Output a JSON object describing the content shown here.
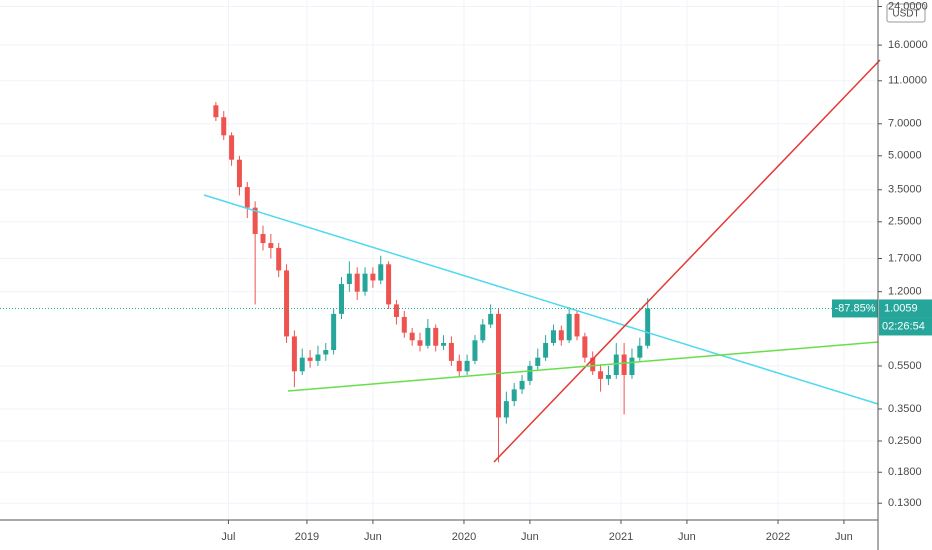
{
  "chart_data": {
    "type": "candlestick",
    "currency": "USDT",
    "log_scale": true,
    "grid": true,
    "up_color": "#26a69a",
    "down_color": "#ef5350",
    "x": [
      2018.42,
      2018.47,
      2018.52,
      2018.57,
      2018.62,
      2018.67,
      2018.72,
      2018.77,
      2018.82,
      2018.87,
      2018.92,
      2018.97,
      2019.02,
      2019.07,
      2019.12,
      2019.17,
      2019.22,
      2019.27,
      2019.32,
      2019.37,
      2019.42,
      2019.47,
      2019.52,
      2019.57,
      2019.62,
      2019.67,
      2019.72,
      2019.77,
      2019.82,
      2019.87,
      2019.92,
      2019.97,
      2020.02,
      2020.07,
      2020.12,
      2020.17,
      2020.22,
      2020.27,
      2020.32,
      2020.37,
      2020.42,
      2020.47,
      2020.52,
      2020.57,
      2020.62,
      2020.67,
      2020.72,
      2020.77,
      2020.82,
      2020.87,
      2020.92,
      2020.97,
      2021.02,
      2021.07,
      2021.12,
      2021.17
    ],
    "open": [
      8.5,
      7.5,
      6.2,
      4.8,
      3.6,
      2.9,
      2.2,
      2.0,
      1.9,
      1.5,
      0.75,
      0.52,
      0.6,
      0.58,
      0.62,
      0.65,
      0.95,
      1.3,
      1.45,
      1.2,
      1.45,
      1.35,
      1.6,
      1.05,
      0.92,
      0.78,
      0.72,
      0.68,
      0.82,
      0.68,
      0.7,
      0.58,
      0.52,
      0.58,
      0.72,
      0.85,
      0.95,
      0.32,
      0.38,
      0.43,
      0.47,
      0.55,
      0.6,
      0.7,
      0.8,
      0.72,
      0.95,
      0.75,
      0.6,
      0.52,
      0.48,
      0.5,
      0.62,
      0.5,
      0.6,
      0.68
    ],
    "high": [
      8.8,
      8.0,
      6.4,
      5.0,
      3.8,
      3.1,
      2.4,
      2.2,
      2.0,
      1.6,
      0.8,
      0.66,
      0.65,
      0.68,
      0.7,
      1.0,
      1.4,
      1.65,
      1.55,
      1.55,
      1.55,
      1.75,
      1.65,
      1.1,
      0.98,
      0.82,
      0.78,
      0.9,
      0.85,
      0.76,
      0.75,
      0.62,
      0.62,
      0.76,
      0.9,
      1.05,
      1.0,
      0.42,
      0.46,
      0.5,
      0.58,
      0.66,
      0.76,
      0.85,
      0.84,
      1.02,
      0.98,
      0.78,
      0.64,
      0.56,
      0.55,
      0.7,
      0.7,
      0.66,
      0.74,
      1.12
    ],
    "low": [
      7.2,
      5.9,
      4.5,
      3.3,
      2.6,
      1.05,
      1.85,
      1.7,
      1.4,
      0.7,
      0.44,
      0.5,
      0.54,
      0.55,
      0.58,
      0.62,
      0.9,
      1.2,
      1.1,
      1.15,
      1.25,
      1.3,
      1.0,
      0.85,
      0.74,
      0.68,
      0.64,
      0.66,
      0.64,
      0.65,
      0.55,
      0.49,
      0.5,
      0.56,
      0.7,
      0.82,
      0.2,
      0.3,
      0.36,
      0.41,
      0.45,
      0.53,
      0.58,
      0.68,
      0.68,
      0.7,
      0.72,
      0.57,
      0.5,
      0.42,
      0.45,
      0.48,
      0.33,
      0.48,
      0.58,
      0.66
    ],
    "close": [
      7.5,
      6.2,
      4.8,
      3.6,
      2.9,
      2.2,
      2.0,
      1.9,
      1.5,
      0.75,
      0.52,
      0.6,
      0.58,
      0.62,
      0.65,
      0.95,
      1.3,
      1.45,
      1.2,
      1.45,
      1.35,
      1.6,
      1.05,
      0.92,
      0.78,
      0.72,
      0.68,
      0.82,
      0.68,
      0.7,
      0.58,
      0.52,
      0.58,
      0.72,
      0.85,
      0.95,
      0.32,
      0.38,
      0.43,
      0.47,
      0.55,
      0.6,
      0.7,
      0.8,
      0.72,
      0.95,
      0.75,
      0.6,
      0.52,
      0.48,
      0.5,
      0.62,
      0.5,
      0.6,
      0.68,
      1.0059
    ],
    "last_price": 1.0059,
    "change": "-87.85%",
    "countdown": "02:26:54",
    "xlim": [
      2017.045,
      2022.637
    ],
    "xticks": [
      {
        "value": 2018.5,
        "label": "Jul"
      },
      2019,
      {
        "value": 2019.42,
        "label": "Jun"
      },
      2020,
      {
        "value": 2020.42,
        "label": "Jun"
      },
      2021,
      {
        "value": 2021.42,
        "label": "Jun"
      },
      2022,
      {
        "value": 2022.42,
        "label": "Jun"
      }
    ],
    "ylim": [
      0.109,
      25.7
    ],
    "yticks": [
      {
        "value": 24,
        "label": "24.0000"
      },
      {
        "value": 16,
        "label": "16.0000"
      },
      {
        "value": 11,
        "label": "11.0000"
      },
      {
        "value": 7,
        "label": "7.0000"
      },
      {
        "value": 5,
        "label": "5.0000"
      },
      {
        "value": 3.5,
        "label": "3.5000"
      },
      {
        "value": 2.5,
        "label": "2.5000"
      },
      {
        "value": 1.7,
        "label": "1.7000"
      },
      {
        "value": 1.2,
        "label": "1.2000"
      },
      {
        "value": 0.55,
        "label": "0.5500"
      },
      {
        "value": 0.35,
        "label": "0.3500"
      },
      {
        "value": 0.25,
        "label": "0.2500"
      },
      {
        "value": 0.18,
        "label": "0.1800"
      },
      {
        "value": 0.13,
        "label": "0.1300"
      }
    ]
  }
}
